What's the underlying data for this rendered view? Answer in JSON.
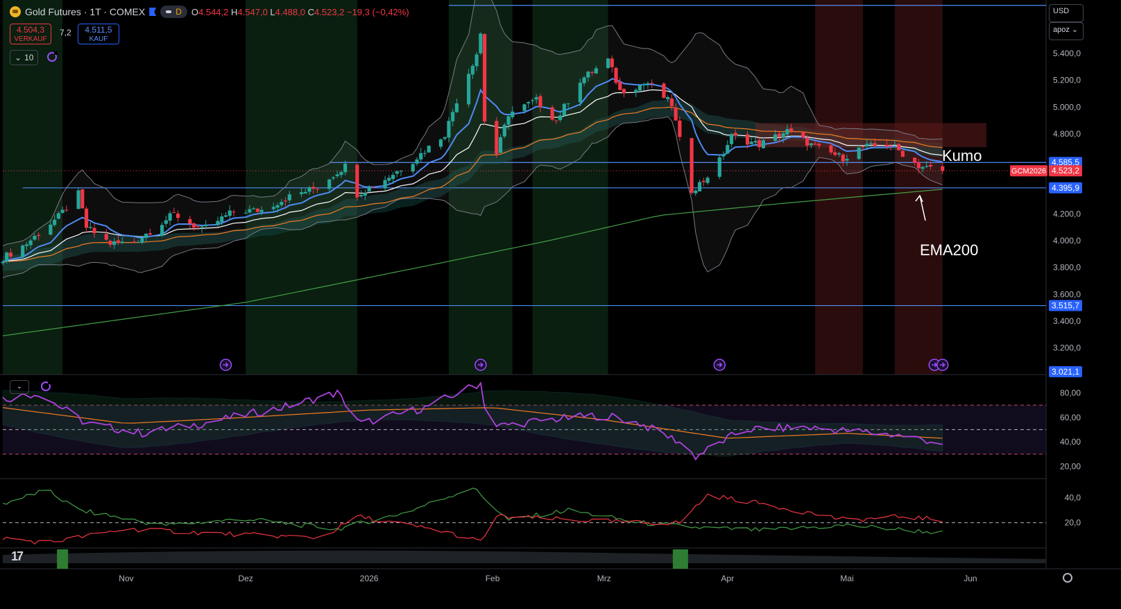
{
  "header": {
    "symbol": "Gold Futures · 1T · COMEX",
    "interval_badge": "D",
    "open_label": "O",
    "open": "4.544,2",
    "high_label": "H",
    "high": "4.547,0",
    "low_label": "L",
    "low": "4.488,0",
    "close_label": "C",
    "close": "4.523,2",
    "change": "−19,3 (−0,42%)",
    "sell_price": "4.504,3",
    "sell_label": "VERKAUF",
    "spread": "7,2",
    "buy_price": "4.511,5",
    "buy_label": "KAUF",
    "indicator_count": "10"
  },
  "currency": {
    "label": "USD",
    "mode": "apoz"
  },
  "colors": {
    "up": "#26a69a",
    "down": "#f23645",
    "accent": "#2962ff",
    "ema_fast": "#4e8cf5",
    "ema_mid": "#ffffff",
    "ema_slow": "#f57c20",
    "ema200": "#43a047",
    "rsi": "#b040e0"
  },
  "annotations": {
    "kumo": "Kumo",
    "ema200": "EMA200"
  },
  "chart_data": [
    {
      "type": "candlestick",
      "title": "Gold Futures · 1T · COMEX",
      "x_tick_labels": [
        "Nov",
        "Dez",
        "2026",
        "Feb",
        "Mrz",
        "Apr",
        "Mai",
        "Jun"
      ],
      "y_tick_labels": [
        "5.400,0",
        "5.200,0",
        "5.000,0",
        "4.800,0",
        "4.600,0",
        "4.400,0",
        "4.200,0",
        "4.000,0",
        "3.800,0",
        "3.600,0",
        "3.400,0",
        "3.200,0"
      ],
      "ylim": [
        3000,
        5800
      ],
      "price_labels": [
        {
          "text": "4.585,5",
          "value": 4585.5
        },
        {
          "text": "4.523,2",
          "value": 4523.2,
          "symbol": "GCM2026",
          "kind": "last"
        },
        {
          "text": "4.395,9",
          "value": 4395.9
        },
        {
          "text": "3.515,7",
          "value": 3515.7
        },
        {
          "text": "3.021,1",
          "value": 3021.1
        }
      ],
      "horizontal_lines": [
        5760,
        4585.5,
        4395.9,
        3515.7
      ],
      "line_extents": [
        {
          "value": 5760,
          "from": "2026-01-21"
        },
        {
          "value": 4585.5,
          "from": "2025-12-22"
        },
        {
          "value": 4395.9,
          "from": "2025-10-06"
        },
        {
          "value": 3515.7,
          "from": "2025-10-01"
        }
      ],
      "x_start": "2025-10-01",
      "x_end": "2026-06-20",
      "candle_anchors": [
        [
          "2025-10-01",
          3870
        ],
        [
          "2025-10-07",
          3980
        ],
        [
          "2025-10-15",
          4180
        ],
        [
          "2025-10-20",
          4350
        ],
        [
          "2025-10-22",
          4100
        ],
        [
          "2025-10-28",
          3980
        ],
        [
          "2025-11-03",
          3990
        ],
        [
          "2025-11-13",
          4200
        ],
        [
          "2025-11-20",
          4080
        ],
        [
          "2025-11-28",
          4220
        ],
        [
          "2025-12-05",
          4230
        ],
        [
          "2025-12-12",
          4330
        ],
        [
          "2025-12-19",
          4400
        ],
        [
          "2025-12-26",
          4560
        ],
        [
          "2025-12-29",
          4350
        ],
        [
          "2026-01-05",
          4460
        ],
        [
          "2026-01-12",
          4600
        ],
        [
          "2026-01-20",
          4800
        ],
        [
          "2026-01-23",
          5050
        ],
        [
          "2026-01-28",
          5400
        ],
        [
          "2026-01-29",
          5550
        ],
        [
          "2026-01-30",
          4900
        ],
        [
          "2026-02-02",
          4650
        ],
        [
          "2026-02-05",
          4950
        ],
        [
          "2026-02-12",
          5050
        ],
        [
          "2026-02-17",
          4900
        ],
        [
          "2026-02-23",
          5200
        ],
        [
          "2026-03-02",
          5350
        ],
        [
          "2026-03-05",
          5120
        ],
        [
          "2026-03-12",
          5180
        ],
        [
          "2026-03-18",
          5020
        ],
        [
          "2026-03-20",
          4750
        ],
        [
          "2026-03-23",
          4380
        ],
        [
          "2026-03-26",
          4450
        ],
        [
          "2026-03-30",
          4600
        ],
        [
          "2026-04-02",
          4780
        ],
        [
          "2026-04-09",
          4720
        ],
        [
          "2026-04-16",
          4820
        ],
        [
          "2026-04-23",
          4700
        ],
        [
          "2026-04-30",
          4620
        ],
        [
          "2026-05-05",
          4700
        ],
        [
          "2026-05-12",
          4720
        ],
        [
          "2026-05-19",
          4560
        ],
        [
          "2026-05-25",
          4523
        ]
      ],
      "ema200_anchors": [
        [
          "2025-10-01",
          3290
        ],
        [
          "2025-12-01",
          3540
        ],
        [
          "2026-01-15",
          3810
        ],
        [
          "2026-02-15",
          4000
        ],
        [
          "2026-03-15",
          4190
        ],
        [
          "2026-04-15",
          4280
        ],
        [
          "2026-05-25",
          4385
        ]
      ],
      "background_zones": [
        {
          "from": "2025-10-01",
          "to": "2025-10-16",
          "tone": "green"
        },
        {
          "from": "2025-12-01",
          "to": "2025-12-29",
          "tone": "green"
        },
        {
          "from": "2026-01-21",
          "to": "2026-02-06",
          "tone": "green"
        },
        {
          "from": "2026-02-11",
          "to": "2026-03-02",
          "tone": "green"
        },
        {
          "from": "2026-04-23",
          "to": "2026-05-05",
          "tone": "red"
        },
        {
          "from": "2026-05-13",
          "to": "2026-05-25",
          "tone": "red"
        }
      ],
      "event_markers": [
        "2025-11-26",
        "2026-01-29",
        "2026-03-30",
        "2026-05-23",
        "2026-05-25"
      ]
    },
    {
      "type": "line",
      "title": "",
      "y_tick_labels": [
        "80,00",
        "60,00",
        "40,00",
        "20,00"
      ],
      "ylim": [
        10,
        95
      ],
      "reference_lines": [
        70,
        50,
        30
      ],
      "series": [
        {
          "color": "#b040e0",
          "anchors": [
            [
              "2025-10-01",
              75
            ],
            [
              "2025-10-10",
              80
            ],
            [
              "2025-10-22",
              55
            ],
            [
              "2025-11-05",
              47
            ],
            [
              "2025-11-20",
              55
            ],
            [
              "2025-12-10",
              68
            ],
            [
              "2025-12-24",
              80
            ],
            [
              "2025-12-30",
              55
            ],
            [
              "2026-01-15",
              68
            ],
            [
              "2026-01-29",
              88
            ],
            [
              "2026-01-31",
              52
            ],
            [
              "2026-02-15",
              58
            ],
            [
              "2026-03-01",
              62
            ],
            [
              "2026-03-10",
              55
            ],
            [
              "2026-03-20",
              40
            ],
            [
              "2026-03-24",
              28
            ],
            [
              "2026-04-05",
              50
            ],
            [
              "2026-04-20",
              52
            ],
            [
              "2026-05-05",
              48
            ],
            [
              "2026-05-15",
              45
            ],
            [
              "2026-05-25",
              39
            ]
          ]
        },
        {
          "color": "#f57c20",
          "anchors": [
            [
              "2025-10-01",
              68
            ],
            [
              "2025-11-01",
              55
            ],
            [
              "2025-12-01",
              60
            ],
            [
              "2026-01-01",
              66
            ],
            [
              "2026-02-01",
              68
            ],
            [
              "2026-03-01",
              58
            ],
            [
              "2026-04-01",
              43
            ],
            [
              "2026-05-01",
              47
            ],
            [
              "2026-05-25",
              43
            ]
          ]
        }
      ]
    },
    {
      "type": "line",
      "title": "",
      "y_tick_labels": [
        "40,0",
        "20,0"
      ],
      "ylim": [
        0,
        55
      ],
      "reference_lines": [
        20
      ],
      "series": [
        {
          "color": "#43a047",
          "anchors": [
            [
              "2025-10-01",
              35
            ],
            [
              "2025-10-12",
              46
            ],
            [
              "2025-10-20",
              30
            ],
            [
              "2025-11-10",
              18
            ],
            [
              "2025-12-01",
              23
            ],
            [
              "2025-12-24",
              15
            ],
            [
              "2026-01-10",
              28
            ],
            [
              "2026-01-27",
              48
            ],
            [
              "2026-02-05",
              22
            ],
            [
              "2026-02-20",
              30
            ],
            [
              "2026-03-10",
              20
            ],
            [
              "2026-03-25",
              16
            ],
            [
              "2026-04-10",
              14
            ],
            [
              "2026-05-01",
              18
            ],
            [
              "2026-05-25",
              12
            ]
          ]
        },
        {
          "color": "#f23645",
          "anchors": [
            [
              "2025-10-01",
              8
            ],
            [
              "2025-10-12",
              4
            ],
            [
              "2025-11-01",
              15
            ],
            [
              "2025-11-20",
              12
            ],
            [
              "2025-12-20",
              8
            ],
            [
              "2025-12-29",
              25
            ],
            [
              "2026-01-20",
              13
            ],
            [
              "2026-01-29",
              5
            ],
            [
              "2026-02-02",
              25
            ],
            [
              "2026-03-10",
              20
            ],
            [
              "2026-03-20",
              20
            ],
            [
              "2026-03-27",
              42
            ],
            [
              "2026-04-10",
              35
            ],
            [
              "2026-05-01",
              22
            ],
            [
              "2026-05-15",
              25
            ],
            [
              "2026-05-25",
              22
            ]
          ]
        }
      ]
    }
  ]
}
